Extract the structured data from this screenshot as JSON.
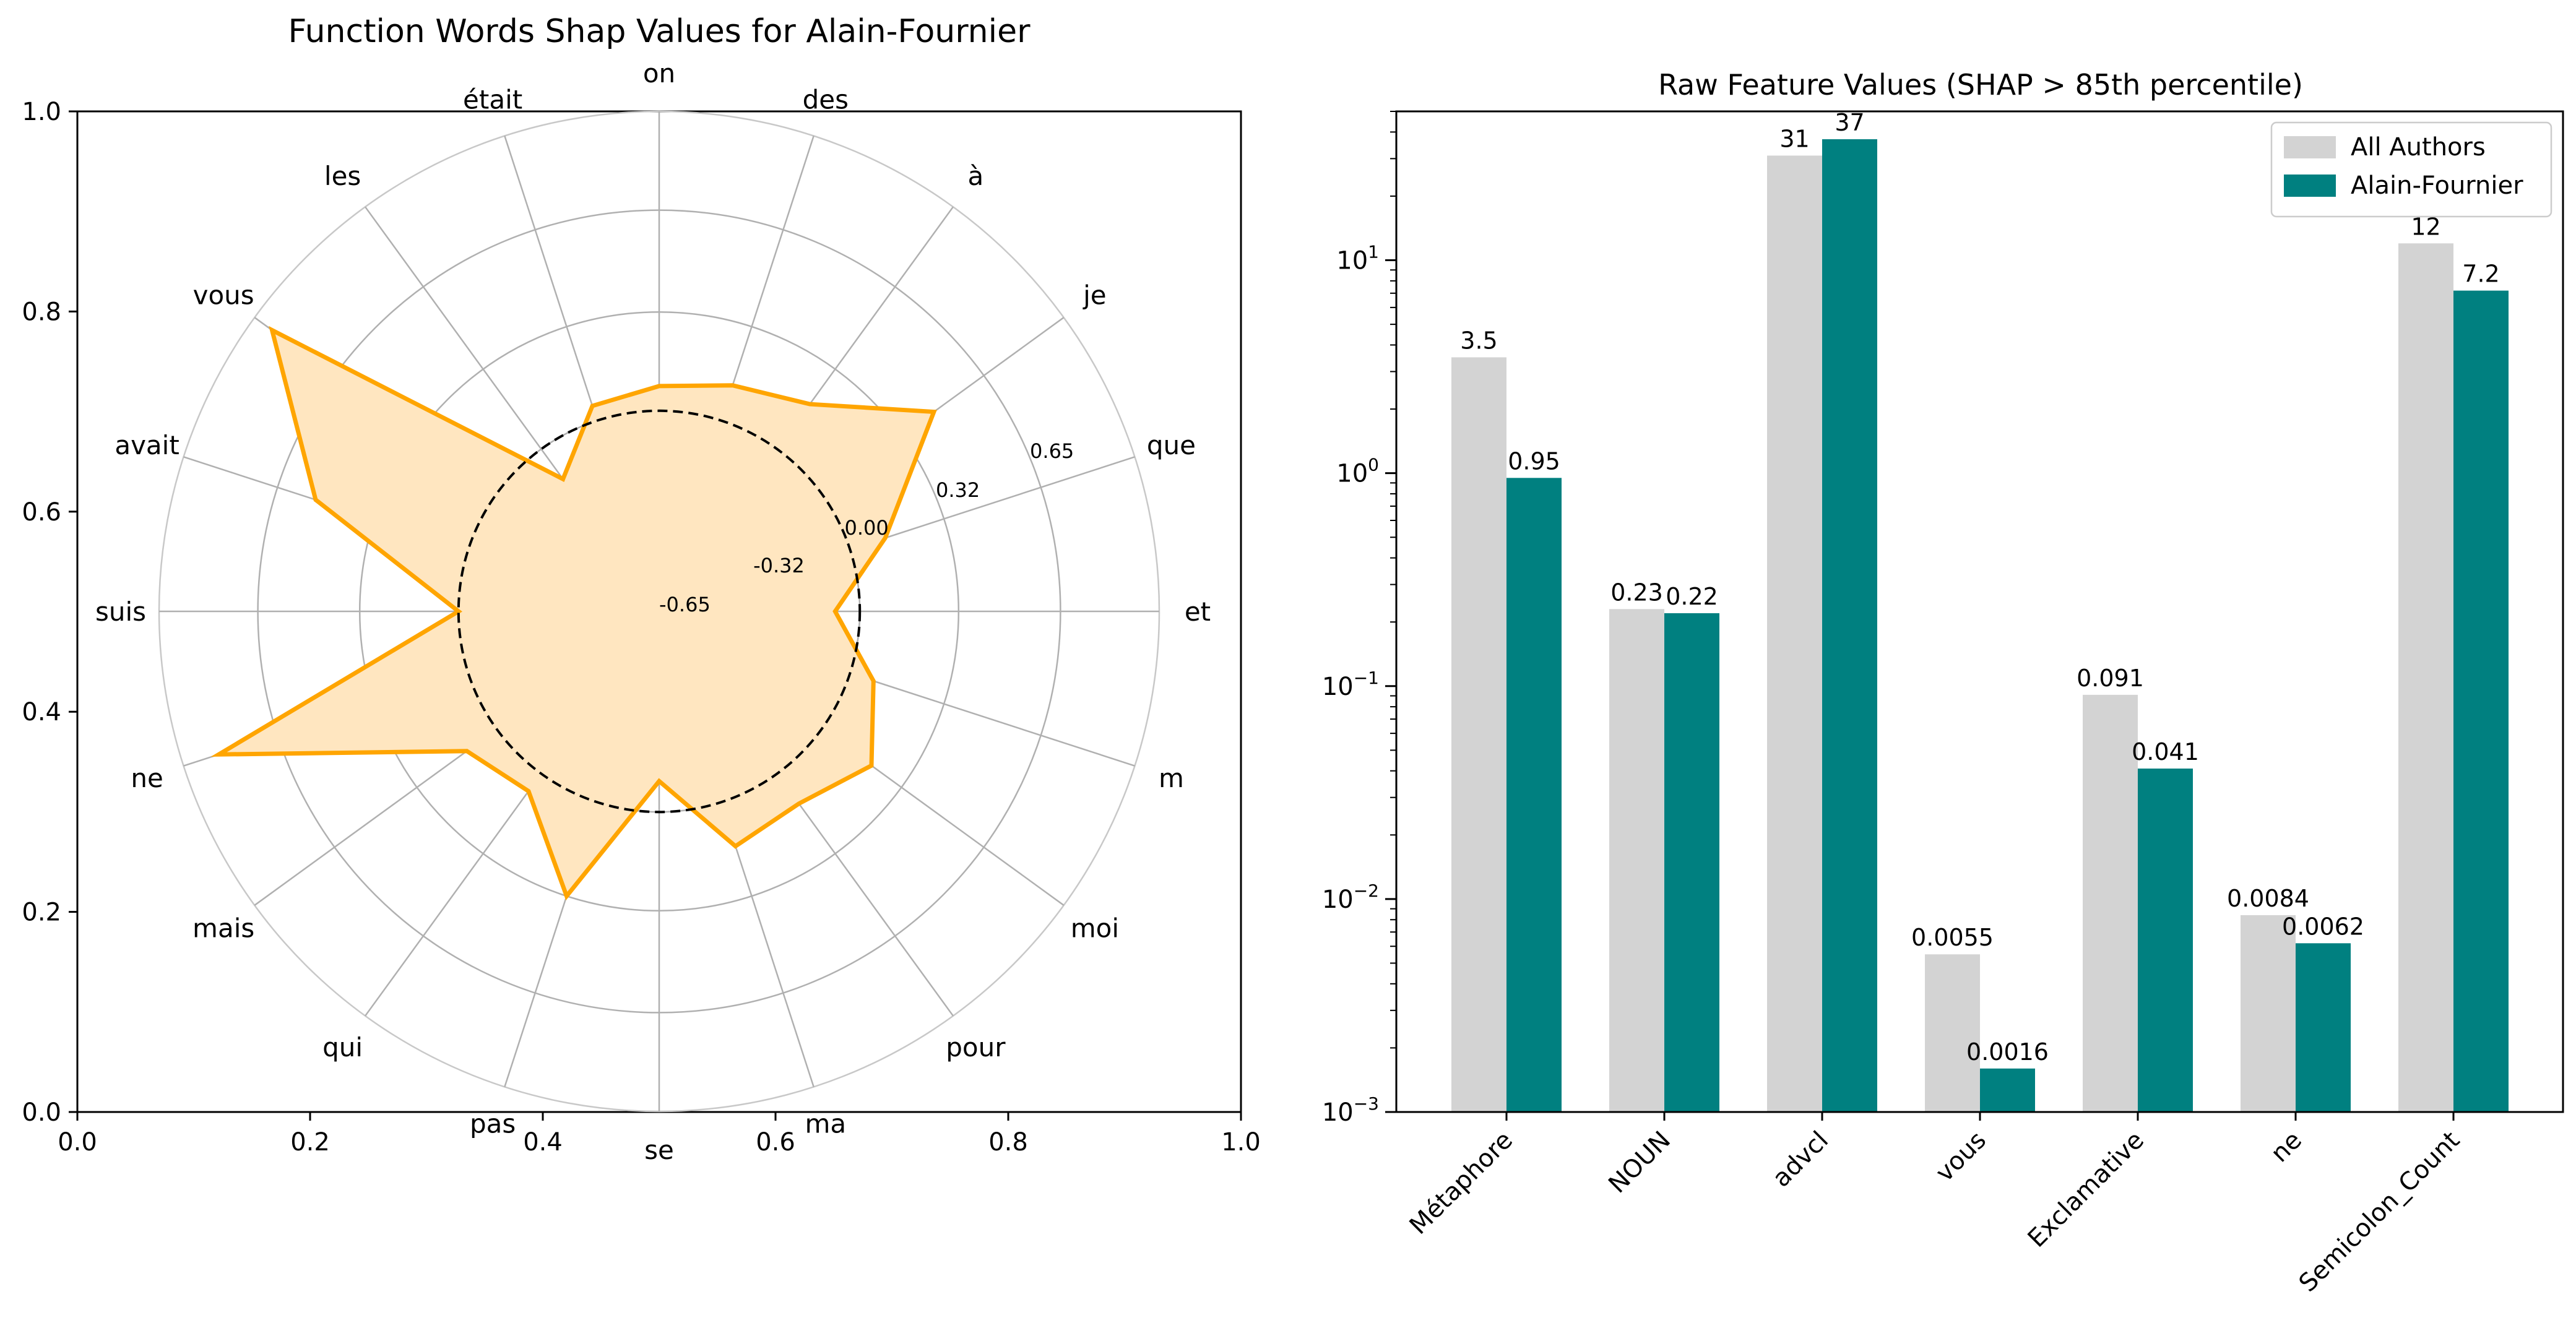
{
  "chart_data": [
    {
      "type": "radar",
      "title": "Function Words Shap Values for Alain-Fournier",
      "categories": [
        "on",
        "des",
        "à",
        "je",
        "que",
        "et",
        "m",
        "moi",
        "pour",
        "ma",
        "se",
        "pas",
        "qui",
        "mais",
        "ne",
        "suis",
        "avait",
        "vous",
        "les",
        "était"
      ],
      "series": [
        {
          "values": [
            0.08,
            0.12,
            0.18,
            0.45,
            0.12,
            -0.08,
            0.08,
            0.2,
            0.12,
            0.15,
            -0.1,
            0.32,
            0.07,
            0.12,
            0.85,
            0.0,
            0.52,
            0.9,
            -0.12,
            0.05
          ],
          "color": "#ffa500",
          "fill": "#ffe6c0"
        }
      ],
      "reference_line": {
        "value": 0.0,
        "style": "dashed",
        "color": "#000000"
      },
      "radial_ticks": [
        -0.65,
        -0.32,
        0.0,
        0.32,
        0.65
      ],
      "radial_tick_labels": [
        "-0.65",
        "-0.32",
        "0.00",
        "0.32",
        "0.65"
      ],
      "radial_range": [
        -0.65,
        0.97
      ],
      "frame_ticks": [
        "0.0",
        "0.2",
        "0.4",
        "0.6",
        "0.8",
        "1.0"
      ],
      "grid": true
    },
    {
      "type": "bar",
      "title": "Raw Feature Values (SHAP > 85th percentile)",
      "categories": [
        "Métaphore",
        "NOUN",
        "advcl",
        "vous",
        "Exclamative",
        "ne",
        "Semicolon_Count"
      ],
      "series": [
        {
          "name": "All Authors",
          "values": [
            3.5,
            0.23,
            31,
            0.0055,
            0.091,
            0.0084,
            12
          ],
          "labels": [
            "3.5",
            "0.23",
            "31",
            "0.0055",
            "0.091",
            "0.0084",
            "12"
          ],
          "color": "#d3d3d3"
        },
        {
          "name": "Alain-Fournier",
          "values": [
            0.95,
            0.22,
            37,
            0.0016,
            0.041,
            0.0062,
            7.2
          ],
          "labels": [
            "0.95",
            "0.22",
            "37",
            "0.0016",
            "0.041",
            "0.0062",
            "7.2"
          ],
          "color": "#008080"
        }
      ],
      "yscale": "log",
      "ylim": [
        0.001,
        50
      ],
      "ytick_labels": [
        {
          "base": "10",
          "exp": "−3"
        },
        {
          "base": "10",
          "exp": "−2"
        },
        {
          "base": "10",
          "exp": "−1"
        },
        {
          "base": "10",
          "exp": "0"
        },
        {
          "base": "10",
          "exp": "1"
        }
      ],
      "legend": "top-right",
      "grid": false
    }
  ]
}
